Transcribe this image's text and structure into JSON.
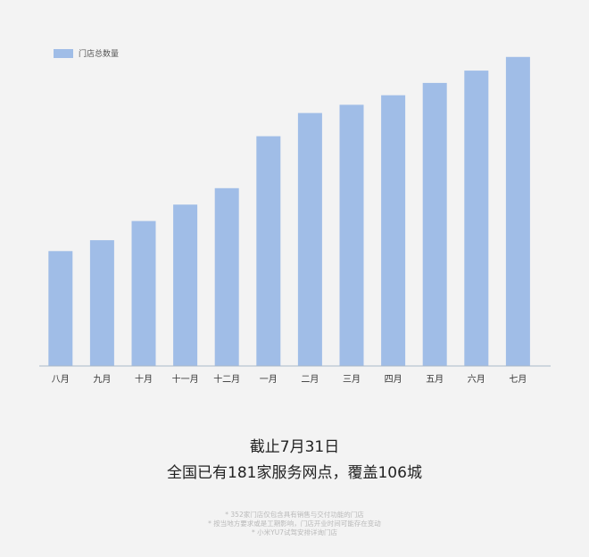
{
  "legend": {
    "label": "门店总数量",
    "color": "#a0bde7"
  },
  "colors": {
    "bar": "#a0bde7",
    "axis": "#aab8c8",
    "tick_text": "#333333"
  },
  "chart_data": {
    "type": "bar",
    "categories": [
      "八月",
      "九月",
      "十月",
      "十一月",
      "十二月",
      "一月",
      "二月",
      "三月",
      "四月",
      "五月",
      "六月",
      "七月"
    ],
    "series": [
      {
        "name": "门店总数量",
        "values": [
          84,
          92,
          106,
          118,
          130,
          168,
          185,
          191,
          198,
          207,
          216,
          226
        ]
      }
    ],
    "ylim": [
      0,
      250
    ],
    "grid": false,
    "legend_position": "top-left",
    "xlabel": "",
    "ylabel": ""
  },
  "headline": {
    "line1": "截止7月31日",
    "line2": "全国已有181家服务网点，覆盖106城"
  },
  "notes": [
    "* 352家门店仅包含具有销售与交付功能的门店",
    "* 按当地方要求或是工期影响，门店开业时间可能存在变动",
    "* 小米YU7试驾安排详询门店"
  ]
}
